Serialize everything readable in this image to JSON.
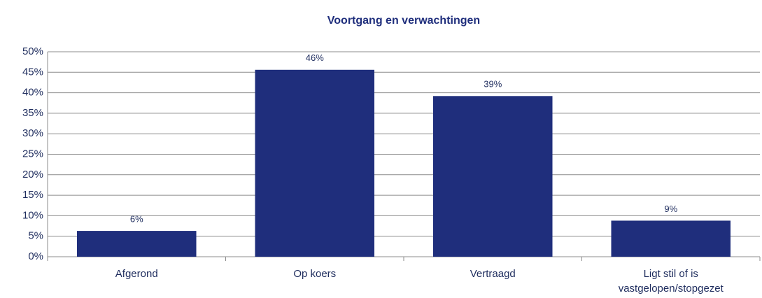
{
  "chart_data": {
    "type": "bar",
    "title": "Voortgang en verwachtingen",
    "categories": [
      "Afgerond",
      "Op koers",
      "Vertraagd",
      "Ligt stil of is vastgelopen/stopgezet"
    ],
    "values": [
      6.3,
      45.6,
      39.2,
      8.8
    ],
    "value_labels": [
      "6%",
      "46%",
      "39%",
      "9%"
    ],
    "color": "#1f2e7c",
    "ylim": [
      0,
      50
    ],
    "yticks": [
      {
        "value": 0,
        "label": "0%"
      },
      {
        "value": 5,
        "label": "5%"
      },
      {
        "value": 10,
        "label": "10%"
      },
      {
        "value": 15,
        "label": "15%"
      },
      {
        "value": 20,
        "label": "20%"
      },
      {
        "value": 25,
        "label": "25%"
      },
      {
        "value": 30,
        "label": "30%"
      },
      {
        "value": 35,
        "label": "35%"
      },
      {
        "value": 40,
        "label": "40%"
      },
      {
        "value": 45,
        "label": "45%"
      },
      {
        "value": 50,
        "label": "50%"
      }
    ],
    "grid": true
  }
}
